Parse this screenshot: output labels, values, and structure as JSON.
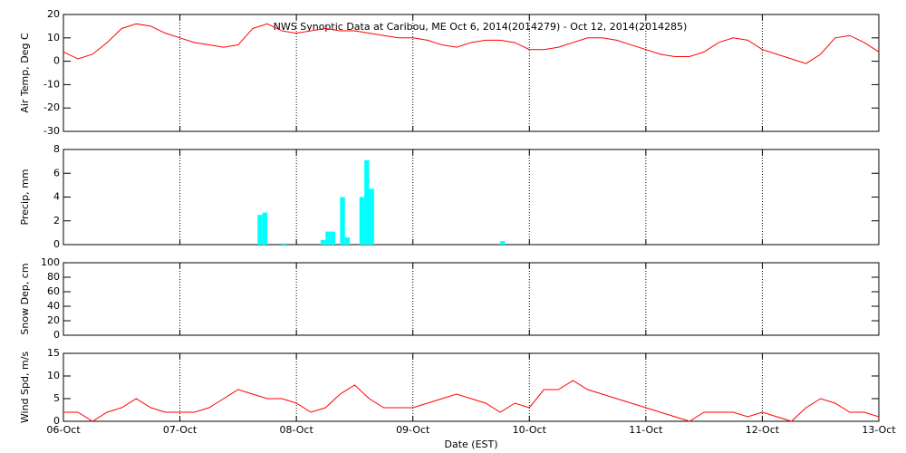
{
  "chart_data": [
    {
      "type": "line",
      "title": "NWS Synoptic Data at Caribou, ME   Oct  6, 2014(2014279) - Oct 12, 2014(2014285)",
      "ylabel": "Air Temp, Deg C",
      "color": "#ff0000",
      "x": [
        0,
        3,
        6,
        9,
        12,
        15,
        18,
        21,
        24,
        27,
        30,
        33,
        36,
        39,
        42,
        45,
        48,
        51,
        54,
        57,
        60,
        63,
        66,
        69,
        72,
        75,
        78,
        81,
        84,
        87,
        90,
        93,
        96,
        99,
        102,
        105,
        108,
        111,
        114,
        117,
        120,
        123,
        126,
        129,
        132,
        135,
        138,
        141,
        144,
        147,
        150,
        153,
        156,
        159,
        162,
        165,
        168
      ],
      "values": [
        4,
        1,
        3,
        8,
        14,
        16,
        15,
        12,
        10,
        8,
        7,
        6,
        7,
        14,
        16,
        13,
        12,
        13,
        14,
        13,
        13,
        12,
        11,
        10,
        10,
        9,
        7,
        6,
        8,
        9,
        9,
        8,
        5,
        5,
        6,
        8,
        10,
        10,
        9,
        7,
        5,
        3,
        2,
        2,
        4,
        8,
        10,
        9,
        5,
        3,
        1,
        -1,
        3,
        10,
        11,
        8,
        4
      ],
      "xlim": [
        0,
        168
      ],
      "xticks": [
        0,
        24,
        48,
        72,
        96,
        120,
        144,
        168
      ],
      "ylim": [
        -30,
        20
      ],
      "yticks": [
        -30,
        -20,
        -10,
        0,
        10,
        20
      ],
      "grid": true
    },
    {
      "type": "bar",
      "ylabel": "Precip, mm",
      "color": "#00ffff",
      "x": [
        40,
        41,
        45,
        53,
        54,
        55,
        57,
        58,
        61,
        62,
        63,
        90
      ],
      "values": [
        2.5,
        2.7,
        0.1,
        0.4,
        1.1,
        1.1,
        4.0,
        0.6,
        4.0,
        7.1,
        4.7,
        0.3
      ],
      "xlim": [
        0,
        168
      ],
      "xticks": [
        0,
        24,
        48,
        72,
        96,
        120,
        144,
        168
      ],
      "ylim": [
        0,
        8
      ],
      "yticks": [
        0,
        2,
        4,
        6,
        8
      ],
      "grid": true
    },
    {
      "type": "line",
      "ylabel": "Snow Dep, cm",
      "color": "#ff0000",
      "xlim": [
        0,
        168
      ],
      "xticks": [
        0,
        24,
        48,
        72,
        96,
        120,
        144,
        168
      ],
      "ylim": [
        0,
        100
      ],
      "yticks": [
        0,
        20,
        40,
        60,
        80,
        100
      ],
      "grid": true
    },
    {
      "type": "line",
      "ylabel": "Wind Spd, m/s",
      "xlabel": "Date (EST)",
      "color": "#ff0000",
      "x": [
        0,
        3,
        6,
        9,
        12,
        15,
        18,
        21,
        24,
        27,
        30,
        33,
        36,
        39,
        42,
        45,
        48,
        51,
        54,
        57,
        60,
        63,
        66,
        69,
        72,
        75,
        78,
        81,
        84,
        87,
        90,
        93,
        96,
        99,
        102,
        105,
        108,
        111,
        114,
        117,
        120,
        123,
        126,
        129,
        132,
        135,
        138,
        141,
        144,
        147,
        150,
        153,
        156,
        159,
        162,
        165,
        168
      ],
      "values": [
        2,
        2,
        0,
        2,
        3,
        5,
        3,
        2,
        2,
        2,
        3,
        5,
        7,
        6,
        5,
        5,
        4,
        2,
        3,
        6,
        8,
        5,
        3,
        3,
        3,
        4,
        5,
        6,
        5,
        4,
        2,
        4,
        3,
        7,
        7,
        9,
        7,
        6,
        5,
        4,
        3,
        2,
        1,
        0,
        2,
        2,
        2,
        1,
        2,
        1,
        0,
        3,
        5,
        4,
        2,
        2,
        1
      ],
      "xlim": [
        0,
        168
      ],
      "xticks": [
        {
          "value": 0,
          "label": "06-Oct"
        },
        {
          "value": 24,
          "label": "07-Oct"
        },
        {
          "value": 48,
          "label": "08-Oct"
        },
        {
          "value": 72,
          "label": "09-Oct"
        },
        {
          "value": 96,
          "label": "10-Oct"
        },
        {
          "value": 120,
          "label": "11-Oct"
        },
        {
          "value": 144,
          "label": "12-Oct"
        },
        {
          "value": 168,
          "label": "13-Oct"
        }
      ],
      "ylim": [
        0,
        15
      ],
      "yticks": [
        0,
        5,
        10,
        15
      ],
      "grid": true
    }
  ]
}
